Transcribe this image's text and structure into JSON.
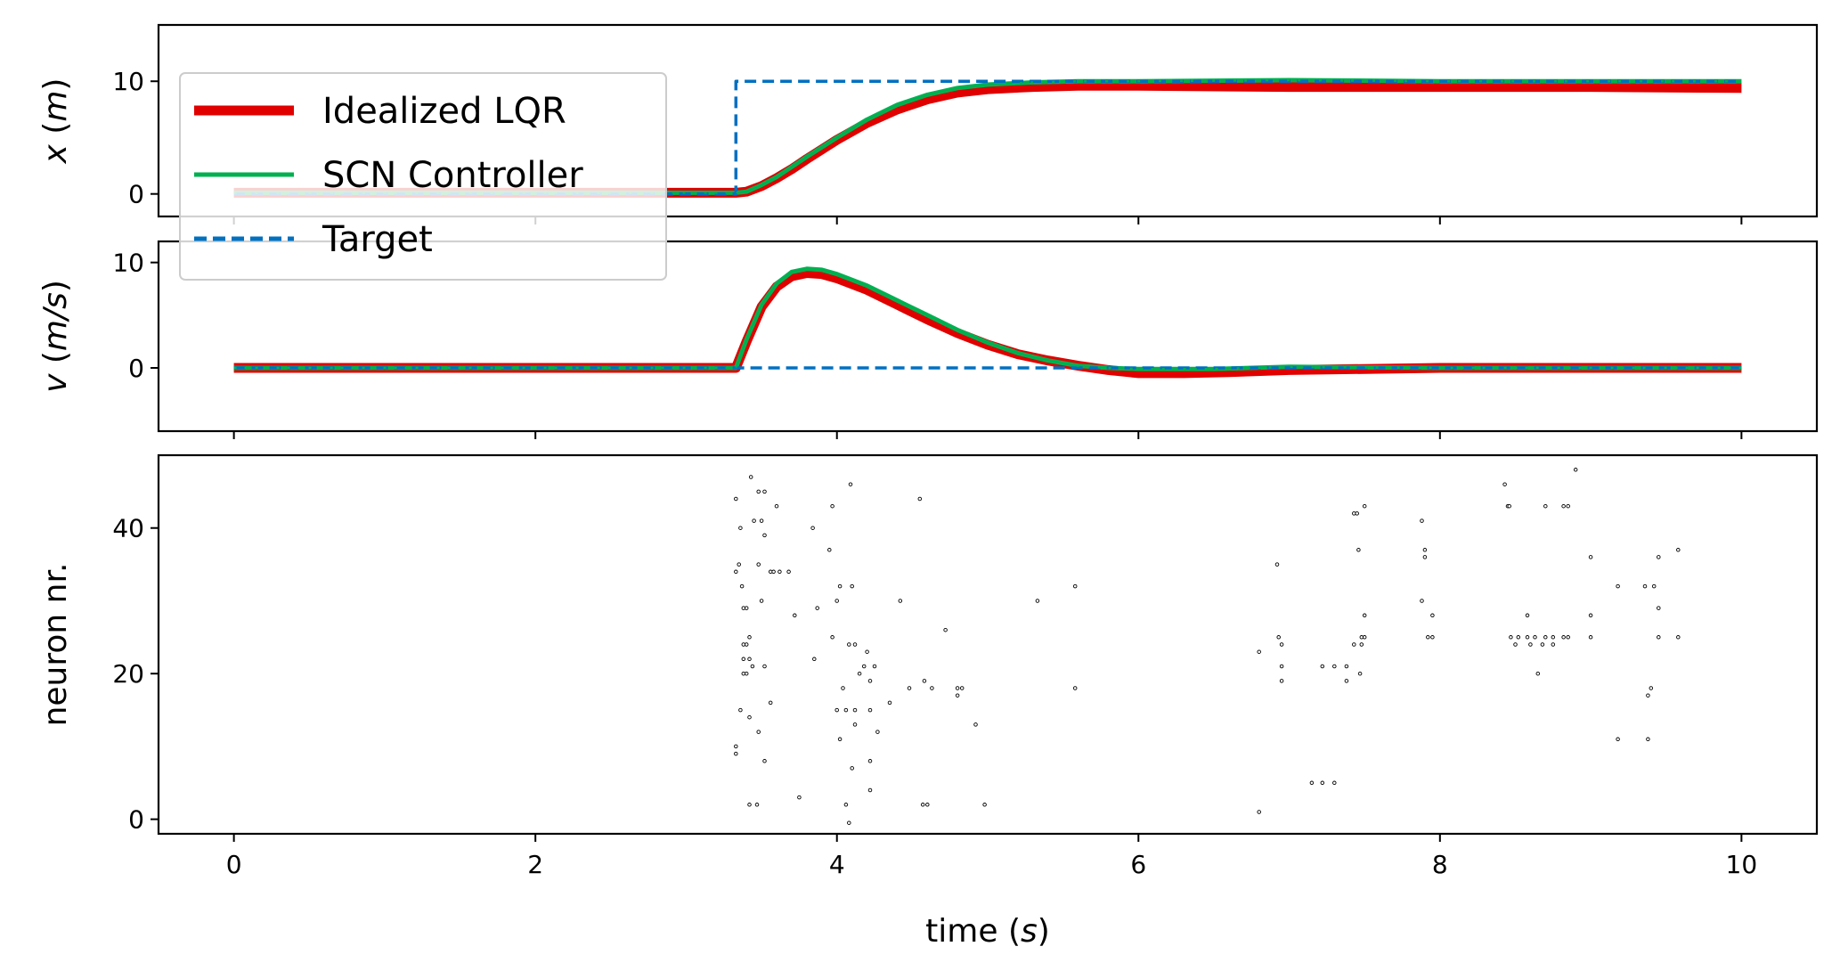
{
  "chart_data": [
    {
      "type": "line",
      "ylabel": "x (m)",
      "xlim": [
        -0.5,
        10.5
      ],
      "ylim": [
        -2,
        15
      ],
      "yticks": [
        0,
        10
      ],
      "xticks": [
        0,
        2,
        4,
        6,
        8,
        10
      ],
      "xtick_labels_shown": false,
      "series": [
        {
          "name": "Idealized LQR",
          "color": "#e00000",
          "points": [
            [
              0,
              0.1
            ],
            [
              3.0,
              0.1
            ],
            [
              3.33,
              0.1
            ],
            [
              3.4,
              0.2
            ],
            [
              3.5,
              0.7
            ],
            [
              3.6,
              1.4
            ],
            [
              3.7,
              2.2
            ],
            [
              3.8,
              3.1
            ],
            [
              4.0,
              4.8
            ],
            [
              4.2,
              6.3
            ],
            [
              4.4,
              7.5
            ],
            [
              4.6,
              8.4
            ],
            [
              4.8,
              9.0
            ],
            [
              5.0,
              9.3
            ],
            [
              5.3,
              9.5
            ],
            [
              5.6,
              9.6
            ],
            [
              6.0,
              9.6
            ],
            [
              7.0,
              9.5
            ],
            [
              8.0,
              9.5
            ],
            [
              9.0,
              9.5
            ],
            [
              10.0,
              9.4
            ]
          ]
        },
        {
          "name": "SCN Controller",
          "color": "#00b050",
          "points": [
            [
              0,
              0.1
            ],
            [
              3.0,
              0.1
            ],
            [
              3.33,
              0.1
            ],
            [
              3.4,
              0.2
            ],
            [
              3.5,
              0.8
            ],
            [
              3.6,
              1.5
            ],
            [
              3.7,
              2.4
            ],
            [
              3.8,
              3.3
            ],
            [
              4.0,
              5.0
            ],
            [
              4.2,
              6.6
            ],
            [
              4.4,
              7.9
            ],
            [
              4.6,
              8.8
            ],
            [
              4.8,
              9.4
            ],
            [
              5.0,
              9.7
            ],
            [
              5.3,
              9.9
            ],
            [
              5.6,
              10.0
            ],
            [
              6.0,
              10.0
            ],
            [
              7.0,
              10.1
            ],
            [
              8.0,
              10.0
            ],
            [
              9.0,
              10.0
            ],
            [
              10.0,
              10.0
            ]
          ]
        },
        {
          "name": "Target",
          "color": "#0070c0",
          "points": [
            [
              0,
              0
            ],
            [
              3.33,
              0
            ],
            [
              3.33,
              10
            ],
            [
              10.0,
              10
            ]
          ]
        }
      ]
    },
    {
      "type": "line",
      "ylabel": "v (m/s)",
      "xlim": [
        -0.5,
        10.5
      ],
      "ylim": [
        -6,
        12
      ],
      "yticks": [
        0,
        10
      ],
      "xticks": [
        0,
        2,
        4,
        6,
        8,
        10
      ],
      "xtick_labels_shown": false,
      "series": [
        {
          "name": "Idealized LQR",
          "color": "#e00000",
          "points": [
            [
              0,
              0
            ],
            [
              3.33,
              0
            ],
            [
              3.4,
              2.5
            ],
            [
              3.5,
              5.8
            ],
            [
              3.6,
              7.7
            ],
            [
              3.7,
              8.7
            ],
            [
              3.8,
              9.0
            ],
            [
              3.9,
              8.9
            ],
            [
              4.0,
              8.5
            ],
            [
              4.2,
              7.4
            ],
            [
              4.4,
              6.0
            ],
            [
              4.6,
              4.6
            ],
            [
              4.8,
              3.3
            ],
            [
              5.0,
              2.2
            ],
            [
              5.2,
              1.3
            ],
            [
              5.4,
              0.7
            ],
            [
              5.6,
              0.2
            ],
            [
              5.8,
              -0.2
            ],
            [
              6.0,
              -0.5
            ],
            [
              6.3,
              -0.5
            ],
            [
              6.6,
              -0.4
            ],
            [
              7.0,
              -0.2
            ],
            [
              8.0,
              0
            ],
            [
              9.0,
              0
            ],
            [
              10.0,
              0
            ]
          ]
        },
        {
          "name": "SCN Controller",
          "color": "#00b050",
          "points": [
            [
              0,
              0
            ],
            [
              3.33,
              0
            ],
            [
              3.4,
              2.7
            ],
            [
              3.5,
              6.0
            ],
            [
              3.6,
              8.0
            ],
            [
              3.7,
              9.1
            ],
            [
              3.8,
              9.4
            ],
            [
              3.9,
              9.3
            ],
            [
              4.0,
              8.9
            ],
            [
              4.2,
              7.8
            ],
            [
              4.4,
              6.4
            ],
            [
              4.6,
              5.0
            ],
            [
              4.8,
              3.6
            ],
            [
              5.0,
              2.4
            ],
            [
              5.2,
              1.4
            ],
            [
              5.4,
              0.7
            ],
            [
              5.6,
              0.2
            ],
            [
              5.8,
              0
            ],
            [
              6.0,
              -0.1
            ],
            [
              6.5,
              -0.1
            ],
            [
              7.0,
              0.1
            ],
            [
              8.0,
              0
            ],
            [
              9.0,
              0
            ],
            [
              10.0,
              0
            ]
          ]
        },
        {
          "name": "Target",
          "color": "#0070c0",
          "points": [
            [
              0,
              0
            ],
            [
              10.0,
              0
            ]
          ]
        }
      ]
    },
    {
      "type": "scatter",
      "xlabel": "time (s)",
      "ylabel": "neuron nr.",
      "xlim": [
        -0.5,
        10.5
      ],
      "ylim": [
        -2,
        50
      ],
      "yticks": [
        0,
        20,
        40
      ],
      "xticks": [
        0,
        2,
        4,
        6,
        8,
        10
      ],
      "spikes": [
        [
          3.33,
          44
        ],
        [
          3.33,
          34
        ],
        [
          3.35,
          35
        ],
        [
          3.36,
          40
        ],
        [
          3.37,
          32
        ],
        [
          3.38,
          29
        ],
        [
          3.4,
          29
        ],
        [
          3.38,
          24
        ],
        [
          3.4,
          24
        ],
        [
          3.38,
          20
        ],
        [
          3.4,
          20
        ],
        [
          3.38,
          22
        ],
        [
          3.42,
          25
        ],
        [
          3.42,
          22
        ],
        [
          3.44,
          21
        ],
        [
          3.45,
          41
        ],
        [
          3.43,
          47
        ],
        [
          3.33,
          10
        ],
        [
          3.33,
          9
        ],
        [
          3.36,
          15
        ],
        [
          3.42,
          14
        ],
        [
          3.42,
          2
        ],
        [
          3.47,
          2
        ],
        [
          3.48,
          45
        ],
        [
          3.5,
          41
        ],
        [
          3.52,
          39
        ],
        [
          3.52,
          45
        ],
        [
          3.48,
          35
        ],
        [
          3.5,
          30
        ],
        [
          3.52,
          21
        ],
        [
          3.56,
          34
        ],
        [
          3.58,
          34
        ],
        [
          3.48,
          12
        ],
        [
          3.52,
          8
        ],
        [
          3.56,
          16
        ],
        [
          3.6,
          43
        ],
        [
          3.62,
          34
        ],
        [
          3.68,
          34
        ],
        [
          3.72,
          28
        ],
        [
          3.75,
          3
        ],
        [
          3.84,
          40
        ],
        [
          3.85,
          22
        ],
        [
          3.87,
          29
        ],
        [
          3.95,
          37
        ],
        [
          3.97,
          25
        ],
        [
          3.97,
          43
        ],
        [
          4.0,
          30
        ],
        [
          4.0,
          15
        ],
        [
          4.02,
          32
        ],
        [
          4.02,
          11
        ],
        [
          4.04,
          18
        ],
        [
          4.06,
          15
        ],
        [
          4.06,
          2
        ],
        [
          4.08,
          24
        ],
        [
          4.08,
          -0.5
        ],
        [
          4.09,
          46
        ],
        [
          4.1,
          32
        ],
        [
          4.1,
          7
        ],
        [
          4.12,
          24
        ],
        [
          4.12,
          15
        ],
        [
          4.12,
          13
        ],
        [
          4.15,
          20
        ],
        [
          4.18,
          21
        ],
        [
          4.2,
          23
        ],
        [
          4.22,
          15
        ],
        [
          4.22,
          4
        ],
        [
          4.22,
          19
        ],
        [
          4.22,
          8
        ],
        [
          4.25,
          21
        ],
        [
          4.27,
          12
        ],
        [
          4.35,
          16
        ],
        [
          4.42,
          30
        ],
        [
          4.48,
          18
        ],
        [
          4.55,
          44
        ],
        [
          4.57,
          2
        ],
        [
          4.58,
          19
        ],
        [
          4.6,
          2
        ],
        [
          4.63,
          18
        ],
        [
          4.72,
          26
        ],
        [
          4.8,
          18
        ],
        [
          4.83,
          18
        ],
        [
          4.8,
          17
        ],
        [
          4.92,
          13
        ],
        [
          4.98,
          2
        ],
        [
          5.33,
          30
        ],
        [
          5.58,
          32
        ],
        [
          5.58,
          18
        ],
        [
          6.8,
          23
        ],
        [
          6.8,
          1
        ],
        [
          6.92,
          35
        ],
        [
          6.93,
          25
        ],
        [
          6.95,
          24
        ],
        [
          6.95,
          21
        ],
        [
          6.95,
          19
        ],
        [
          7.15,
          5
        ],
        [
          7.22,
          21
        ],
        [
          7.22,
          5
        ],
        [
          7.3,
          21
        ],
        [
          7.3,
          5
        ],
        [
          7.38,
          21
        ],
        [
          7.38,
          19
        ],
        [
          7.43,
          24
        ],
        [
          7.43,
          42
        ],
        [
          7.45,
          42
        ],
        [
          7.46,
          37
        ],
        [
          7.47,
          20
        ],
        [
          7.48,
          24
        ],
        [
          7.48,
          25
        ],
        [
          7.5,
          43
        ],
        [
          7.5,
          25
        ],
        [
          7.5,
          28
        ],
        [
          7.88,
          30
        ],
        [
          7.88,
          41
        ],
        [
          7.9,
          37
        ],
        [
          7.9,
          36
        ],
        [
          7.92,
          25
        ],
        [
          7.95,
          28
        ],
        [
          7.95,
          25
        ],
        [
          8.43,
          46
        ],
        [
          8.45,
          43
        ],
        [
          8.46,
          43
        ],
        [
          8.47,
          25
        ],
        [
          8.5,
          24
        ],
        [
          8.52,
          25
        ],
        [
          8.58,
          25
        ],
        [
          8.58,
          28
        ],
        [
          8.6,
          24
        ],
        [
          8.63,
          25
        ],
        [
          8.65,
          20
        ],
        [
          8.68,
          24
        ],
        [
          8.7,
          43
        ],
        [
          8.7,
          25
        ],
        [
          8.75,
          25
        ],
        [
          8.75,
          24
        ],
        [
          8.82,
          43
        ],
        [
          8.82,
          25
        ],
        [
          8.85,
          25
        ],
        [
          8.85,
          43
        ],
        [
          8.9,
          48
        ],
        [
          9.0,
          36
        ],
        [
          9.0,
          28
        ],
        [
          9.0,
          25
        ],
        [
          9.18,
          32
        ],
        [
          9.18,
          11
        ],
        [
          9.36,
          32
        ],
        [
          9.38,
          11
        ],
        [
          9.38,
          17
        ],
        [
          9.4,
          18
        ],
        [
          9.42,
          32
        ],
        [
          9.45,
          36
        ],
        [
          9.45,
          29
        ],
        [
          9.45,
          25
        ],
        [
          9.58,
          37
        ],
        [
          9.58,
          25
        ]
      ]
    }
  ],
  "legend": {
    "placement": "top-left",
    "entries": [
      {
        "label": "Idealized LQR",
        "color": "#e00000",
        "style": "thick-solid"
      },
      {
        "label": "SCN Controller",
        "color": "#00b050",
        "style": "solid"
      },
      {
        "label": "Target",
        "color": "#0070c0",
        "style": "dashed"
      }
    ]
  }
}
